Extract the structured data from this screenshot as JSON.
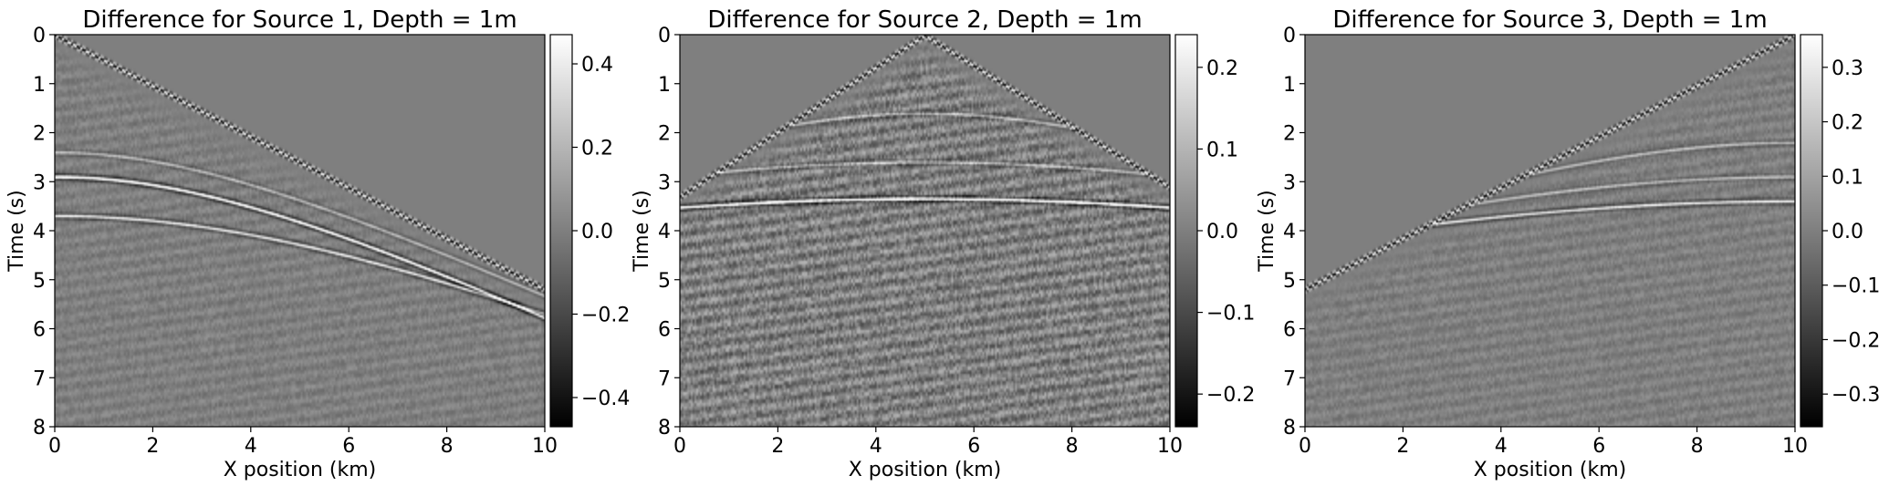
{
  "colorbar_colors": {
    "low": "#000000",
    "mid": "#7f7f7f",
    "high": "#ffffff"
  },
  "background_gray": "#7e7e7e",
  "chart_data": [
    {
      "type": "heatmap",
      "title": "Difference for Source 1, Depth = 1m",
      "xlabel": "X position (km)",
      "ylabel": "Time (s)",
      "xlim": [
        0,
        10
      ],
      "ylim": [
        8,
        0
      ],
      "xticks": [
        "0",
        "2",
        "4",
        "6",
        "8",
        "10"
      ],
      "yticks": [
        "0",
        "1",
        "2",
        "3",
        "4",
        "5",
        "6",
        "7",
        "8"
      ],
      "colormap": "gray",
      "vmin": -0.47,
      "vmax": 0.47,
      "colorbar_ticks": [
        {
          "value": 0.4,
          "label": "0.4"
        },
        {
          "value": 0.2,
          "label": "0.2"
        },
        {
          "value": 0.0,
          "label": "0.0"
        },
        {
          "value": -0.2,
          "label": "−0.2"
        },
        {
          "value": -0.4,
          "label": "−0.4"
        }
      ],
      "source_x_km": 0,
      "direct_wave": {
        "x": [
          0,
          10
        ],
        "t": [
          0,
          5.2
        ]
      },
      "reflections": [
        {
          "t0": 2.4,
          "v": 2.1,
          "amp": 0.4
        },
        {
          "t0": 2.9,
          "v": 2.0,
          "amp": 1.0
        },
        {
          "t0": 3.7,
          "v": 2.3,
          "amp": 0.7
        }
      ],
      "noise_level": 0.12
    },
    {
      "type": "heatmap",
      "title": "Difference for Source 2, Depth = 1m",
      "xlabel": "X position (km)",
      "ylabel": "Time (s)",
      "xlim": [
        0,
        10
      ],
      "ylim": [
        8,
        0
      ],
      "xticks": [
        "0",
        "2",
        "4",
        "6",
        "8",
        "10"
      ],
      "yticks": [
        "0",
        "1",
        "2",
        "3",
        "4",
        "5",
        "6",
        "7",
        "8"
      ],
      "colormap": "gray",
      "vmin": -0.24,
      "vmax": 0.24,
      "colorbar_ticks": [
        {
          "value": 0.2,
          "label": "0.2"
        },
        {
          "value": 0.1,
          "label": "0.1"
        },
        {
          "value": 0.0,
          "label": "0.0"
        },
        {
          "value": -0.1,
          "label": "−0.1"
        },
        {
          "value": -0.2,
          "label": "−0.2"
        }
      ],
      "source_x_km": 5,
      "direct_wave": {
        "x": [
          0,
          5,
          10
        ],
        "t": [
          3.3,
          0,
          3.1
        ]
      },
      "reflections": [
        {
          "t0": 1.6,
          "v": 3.0,
          "amp": 0.4
        },
        {
          "t0": 2.6,
          "v": 4.0,
          "amp": 0.4
        },
        {
          "t0": 3.35,
          "v": 4.5,
          "amp": 1.0
        }
      ],
      "noise_level": 0.3
    },
    {
      "type": "heatmap",
      "title": "Difference for Source 3, Depth = 1m",
      "xlabel": "X position (km)",
      "ylabel": "Time (s)",
      "xlim": [
        0,
        10
      ],
      "ylim": [
        8,
        0
      ],
      "xticks": [
        "0",
        "2",
        "4",
        "6",
        "8",
        "10"
      ],
      "yticks": [
        "0",
        "1",
        "2",
        "3",
        "4",
        "5",
        "6",
        "7",
        "8"
      ],
      "colormap": "gray",
      "vmin": -0.36,
      "vmax": 0.36,
      "colorbar_ticks": [
        {
          "value": 0.3,
          "label": "0.3"
        },
        {
          "value": 0.2,
          "label": "0.2"
        },
        {
          "value": 0.1,
          "label": "0.1"
        },
        {
          "value": 0.0,
          "label": "0.0"
        },
        {
          "value": -0.1,
          "label": "−0.1"
        },
        {
          "value": -0.2,
          "label": "−0.2"
        },
        {
          "value": -0.3,
          "label": "−0.3"
        }
      ],
      "source_x_km": 10,
      "direct_wave": {
        "x": [
          0,
          10
        ],
        "t": [
          5.2,
          0
        ]
      },
      "reflections": [
        {
          "t0": 2.2,
          "v": 3.0,
          "amp": 0.4
        },
        {
          "t0": 2.9,
          "v": 3.5,
          "amp": 0.4
        },
        {
          "t0": 3.4,
          "v": 4.0,
          "amp": 0.7
        }
      ],
      "noise_level": 0.12
    }
  ]
}
